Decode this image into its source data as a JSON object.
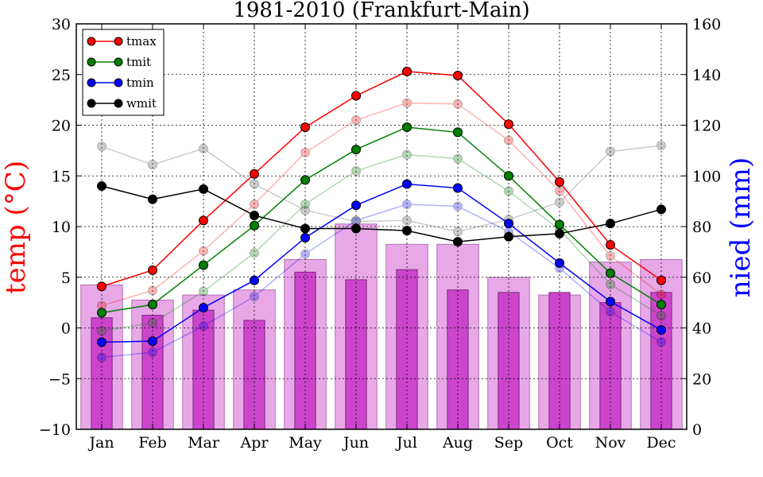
{
  "chart_data": {
    "type": "bar+line",
    "title": "1981-2010 (Frankfurt-Main)",
    "ylabel_left": "temp ($^\\circ$C)",
    "ylabel_left_display": "temp (°C)",
    "ylabel_right": "nied (mm)",
    "categories": [
      "Jan",
      "Feb",
      "Mar",
      "Apr",
      "May",
      "Jun",
      "Jul",
      "Aug",
      "Sep",
      "Oct",
      "Nov",
      "Dec"
    ],
    "ylim_left": [
      -10,
      30
    ],
    "ylim_right": [
      0,
      160
    ],
    "yticks_left": [
      "−10",
      "−5",
      "0",
      "5",
      "10",
      "15",
      "20",
      "25",
      "30"
    ],
    "yticks_right": [
      "0",
      "20",
      "40",
      "60",
      "80",
      "100",
      "120",
      "140",
      "160"
    ],
    "grid": true,
    "legend_position": "top-left",
    "colors": {
      "tmax": "#ff0000",
      "tmit": "#008000",
      "tmin": "#0000ff",
      "wmit": "#000000",
      "bar_light": "#e8a8e8",
      "bar_dark": "#cc44cc",
      "left_label": "#ff0000",
      "right_label": "#0000ff"
    },
    "series": [
      {
        "name": "tmax",
        "axis": "left",
        "values": [
          4.1,
          5.7,
          10.6,
          15.2,
          19.8,
          22.9,
          25.3,
          24.9,
          20.1,
          14.4,
          8.2,
          4.7
        ]
      },
      {
        "name": "tmit",
        "axis": "left",
        "values": [
          1.5,
          2.3,
          6.2,
          10.1,
          14.6,
          17.6,
          19.8,
          19.3,
          15.0,
          10.2,
          5.4,
          2.3
        ]
      },
      {
        "name": "tmin",
        "axis": "left",
        "values": [
          -1.4,
          -1.3,
          2.0,
          4.7,
          8.9,
          12.1,
          14.2,
          13.8,
          10.3,
          6.4,
          2.6,
          -0.2
        ]
      },
      {
        "name": "wmit",
        "axis": "left",
        "values": [
          14.0,
          12.7,
          13.7,
          11.1,
          9.8,
          9.8,
          9.6,
          8.5,
          9.0,
          9.3,
          10.3,
          11.7
        ]
      }
    ],
    "reference_series": [
      {
        "of": "tmax",
        "axis": "left",
        "values": [
          2.2,
          3.7,
          7.6,
          12.2,
          17.3,
          20.5,
          22.2,
          22.1,
          18.5,
          13.5,
          7.1,
          3.3
        ]
      },
      {
        "of": "tmit",
        "axis": "left",
        "values": [
          -0.3,
          0.5,
          3.6,
          7.4,
          12.2,
          15.5,
          17.1,
          16.7,
          13.5,
          9.7,
          4.3,
          1.2
        ]
      },
      {
        "of": "tmin",
        "axis": "left",
        "values": [
          -2.9,
          -2.4,
          0.2,
          3.1,
          7.3,
          10.6,
          12.2,
          12.0,
          9.5,
          5.9,
          1.6,
          -1.4
        ]
      },
      {
        "of": "wmit",
        "axis": "left",
        "values": [
          17.9,
          16.1,
          17.7,
          14.2,
          11.6,
          10.5,
          10.6,
          9.5,
          10.7,
          12.4,
          17.4,
          18.0
        ]
      }
    ],
    "bars_wide": {
      "axis": "right",
      "values": [
        57,
        51,
        53,
        55,
        67,
        81,
        73,
        73,
        60,
        53,
        66,
        67
      ]
    },
    "bars_narrow": {
      "axis": "right",
      "values": [
        44,
        45,
        47,
        43,
        62,
        59,
        63,
        55,
        54,
        54,
        50,
        54
      ]
    }
  }
}
